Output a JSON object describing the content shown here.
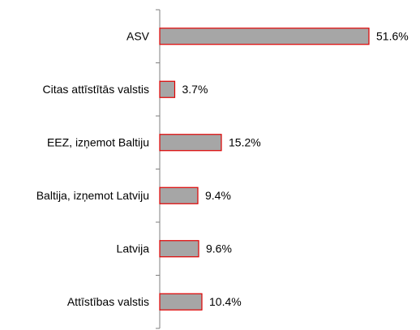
{
  "chart_data": {
    "type": "barh",
    "categories": [
      "ASV",
      "Citas attīstītās valstis",
      "EEZ, izņemot Baltiju",
      "Baltija, izņemot Latviju",
      "Latvija",
      "Attīstības valstis"
    ],
    "values": [
      51.6,
      3.7,
      15.2,
      9.4,
      9.6,
      10.4
    ],
    "value_labels": [
      "51.6%",
      "3.7%",
      "15.2%",
      "9.4%",
      "9.6%",
      "10.4%"
    ],
    "color": "#a6a6a6",
    "edge_color": "#e00000",
    "xlim": [
      0,
      60
    ]
  }
}
